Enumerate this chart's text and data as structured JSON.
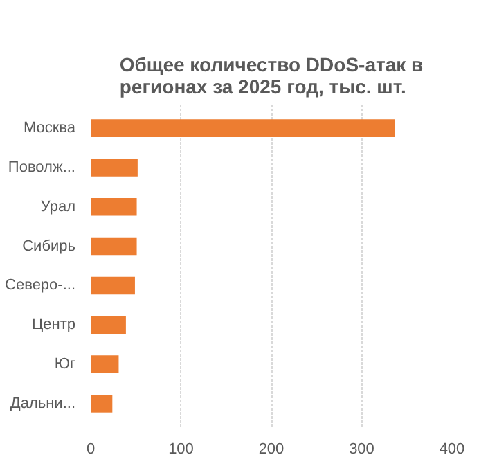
{
  "chart_data": {
    "type": "bar",
    "orientation": "horizontal",
    "title": "Общее количество DDoS-атак в регионах за 2025 год, тыс. шт.",
    "categories": [
      "Москва",
      "Поволж...",
      "Урал",
      "Сибирь",
      "Северо-...",
      "Центр",
      "Юг",
      "Дальни..."
    ],
    "values": [
      337,
      52,
      51,
      51,
      49,
      39,
      31,
      24
    ],
    "color": "#ed7d31",
    "xlim": [
      0,
      400
    ],
    "xticks": [
      0,
      100,
      200,
      300,
      400
    ],
    "grid": "x"
  }
}
